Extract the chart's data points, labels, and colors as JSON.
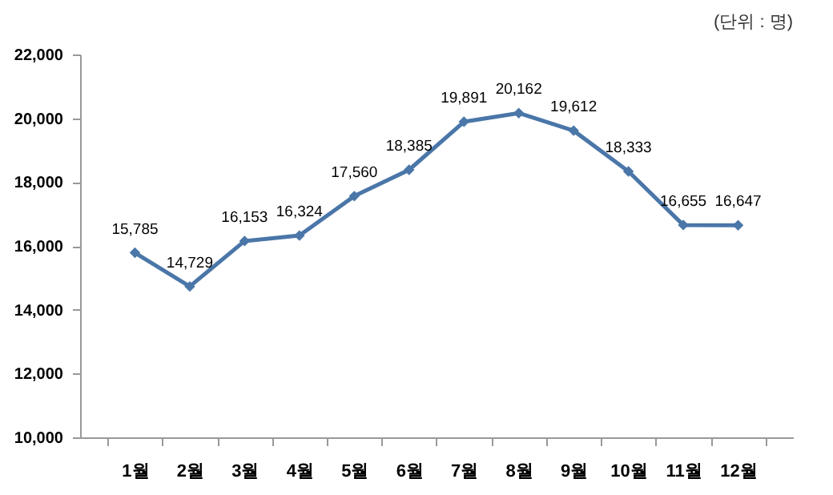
{
  "chart_data": {
    "type": "line",
    "categories": [
      "1월",
      "2월",
      "3월",
      "4월",
      "5월",
      "6월",
      "7월",
      "8월",
      "9월",
      "10월",
      "11월",
      "12월"
    ],
    "series": [
      {
        "color": "#4a76a8",
        "values": [
          15785,
          14729,
          16153,
          16324,
          17560,
          18385,
          19891,
          20162,
          19612,
          18333,
          16655,
          16647
        ],
        "value_labels": [
          "15,785",
          "14,729",
          "16,153",
          "16,324",
          "17,560",
          "18,385",
          "19,891",
          "20,162",
          "19,612",
          "18,333",
          "16,655",
          "16,647"
        ]
      }
    ],
    "ylim": [
      10000,
      22000
    ],
    "yticks": [
      {
        "value": 10000,
        "label": "10,000"
      },
      {
        "value": 12000,
        "label": "12,000"
      },
      {
        "value": 14000,
        "label": "14,000"
      },
      {
        "value": 16000,
        "label": "16,000"
      },
      {
        "value": 18000,
        "label": "18,000"
      },
      {
        "value": 20000,
        "label": "20,000"
      },
      {
        "value": 22000,
        "label": "22,000"
      }
    ],
    "data_labels": true,
    "marker": "diamond",
    "grid": false,
    "legend": false,
    "annotations": [
      "(단위 : 명)"
    ]
  }
}
